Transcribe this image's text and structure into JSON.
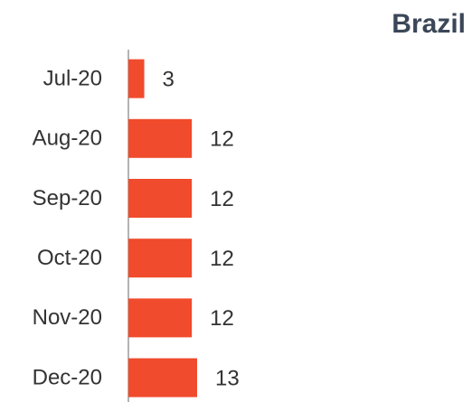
{
  "chart_data": {
    "type": "bar",
    "orientation": "horizontal",
    "title": "Brazil",
    "categories": [
      "Jul-20",
      "Aug-20",
      "Sep-20",
      "Oct-20",
      "Nov-20",
      "Dec-20"
    ],
    "values": [
      3,
      12,
      12,
      12,
      12,
      13
    ],
    "color": "#f04b2c"
  }
}
